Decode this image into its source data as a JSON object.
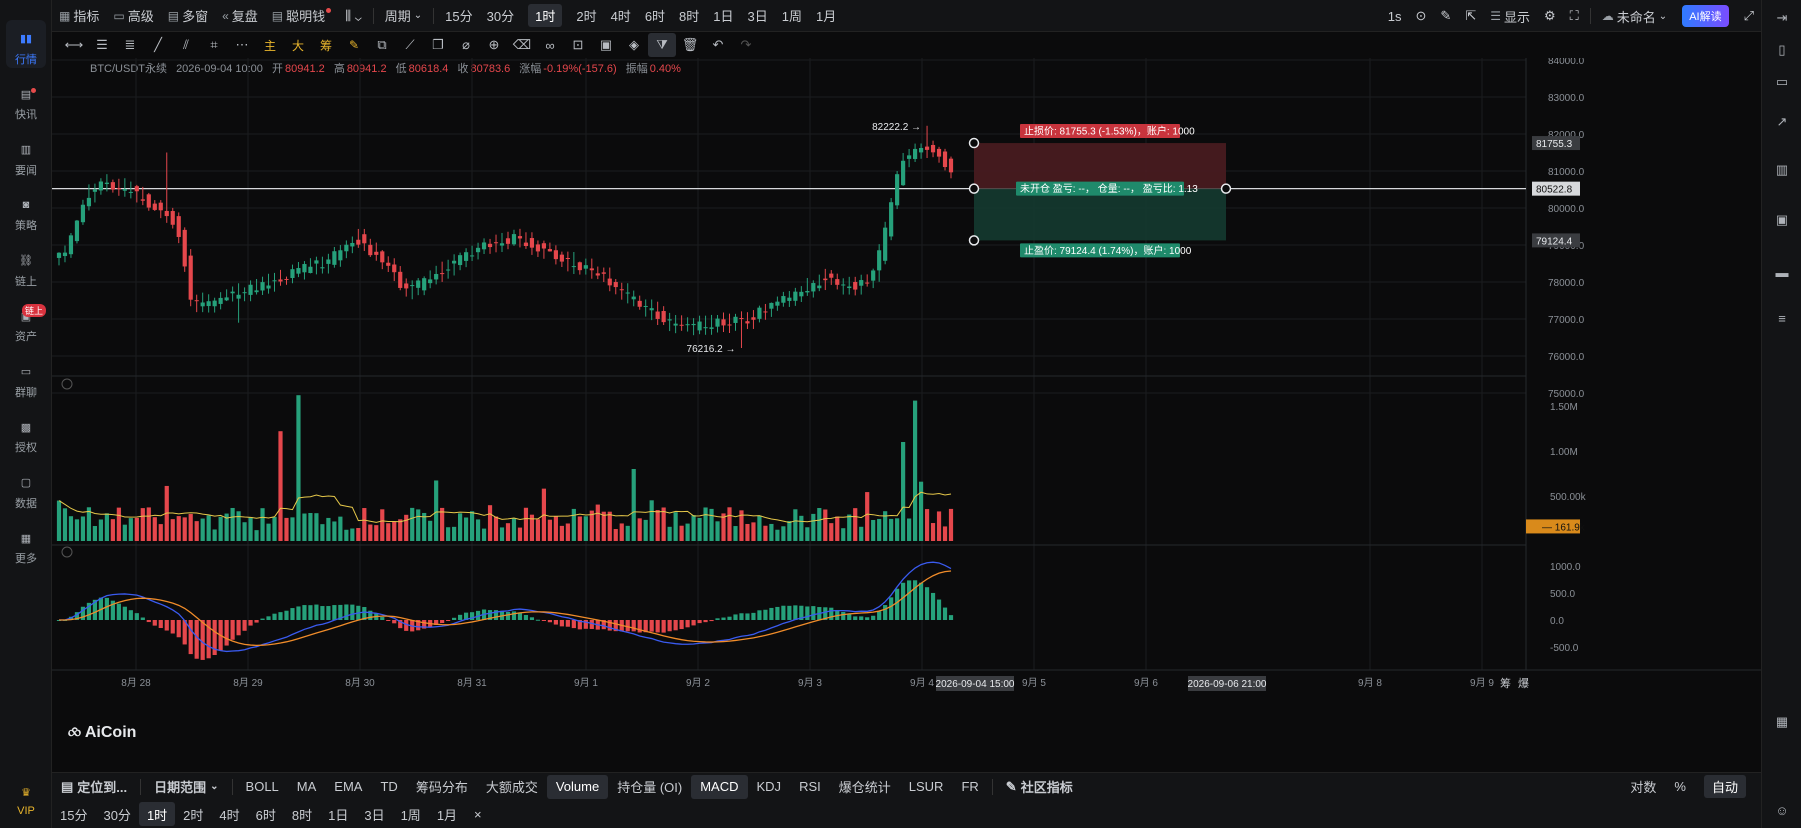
{
  "nav": {
    "items": [
      {
        "label": "行情",
        "icon": "chart-bars-icon"
      },
      {
        "label": "快讯",
        "icon": "news-icon"
      },
      {
        "label": "要闻",
        "icon": "document-icon"
      },
      {
        "label": "策略",
        "icon": "robot-icon"
      },
      {
        "label": "链上",
        "icon": "chain-icon"
      },
      {
        "label": "资产",
        "icon": "wallet-icon",
        "badge": "链上"
      },
      {
        "label": "群聊",
        "icon": "chat-icon"
      },
      {
        "label": "授权",
        "icon": "key-icon"
      },
      {
        "label": "数据",
        "icon": "monitor-icon"
      },
      {
        "label": "更多",
        "icon": "grid-icon"
      }
    ],
    "vip": "VIP"
  },
  "topbar": {
    "indicators": "指标",
    "advanced": "高级",
    "multiwindow": "多窗",
    "review": "复盘",
    "smartmoney": "聪明钱",
    "period": "周期",
    "timeframes": [
      "15分",
      "30分",
      "1时",
      "2时",
      "4时",
      "6时",
      "8时",
      "1日",
      "3日",
      "1周",
      "1月"
    ],
    "active_tf": "1时",
    "right": {
      "interval": "1s",
      "display": "显示",
      "layout_name": "未命名",
      "ai": "AI解读"
    }
  },
  "info": {
    "symbol": "BTC/USDT永续",
    "datetime": "2026-09-04 10:00",
    "open_k": "开",
    "open": "80941.2",
    "high_k": "高",
    "high": "80941.2",
    "low_k": "低",
    "low": "80618.4",
    "close_k": "收",
    "close": "80783.6",
    "chg_k": "涨幅",
    "chg": "-0.19%(-157.6)",
    "amp_k": "振幅",
    "amp": "0.40%"
  },
  "price_axis": [
    "84000.0",
    "83000.0",
    "82000.0",
    "81000.0",
    "80000.0",
    "79000.0",
    "78000.0",
    "77000.0",
    "76000.0",
    "75000.0"
  ],
  "price_markers": {
    "stop": "81755.3",
    "current": "80522.8",
    "profit": "79124.4"
  },
  "high_label": "82222.2",
  "low_label": "76216.2",
  "trade": {
    "stop": "止损价: 81755.3 (-1.53%)，账户: 1000",
    "open": "未开仓  盈亏: --，  仓量: --，  盈亏比: 1.13",
    "profit": "止盈价: 79124.4 (1.74%)，账户: 1000"
  },
  "vol_axis": [
    "1.50M",
    "1.00M",
    "500.00k"
  ],
  "vol_marker": "161.9k",
  "macd_axis": [
    "1000.0",
    "500.0",
    "0.0",
    "-500.0"
  ],
  "x_labels": [
    "8月 28",
    "8月 29",
    "8月 30",
    "8月 31",
    "9月 1",
    "9月 2",
    "9月 3",
    "9月 4",
    "9月 5",
    "9月 6",
    "9月 8",
    "9月 9"
  ],
  "x_markers": [
    "2026-09-04 15:00",
    "2026-09-06 21:00"
  ],
  "corner": [
    "筹",
    "爆"
  ],
  "logo": "AiCoin",
  "bottom1": {
    "locate": "定位到...",
    "daterange": "日期范围",
    "indicators": [
      "BOLL",
      "MA",
      "EMA",
      "TD",
      "筹码分布",
      "大额成交",
      "Volume",
      "持仓量 (OI)",
      "MACD",
      "KDJ",
      "RSI",
      "爆仓统计",
      "LSUR",
      "FR"
    ],
    "active": [
      "Volume",
      "MACD"
    ],
    "community": "社区指标",
    "log": "对数",
    "pct": "%",
    "auto": "自动"
  },
  "bottom2": {
    "timeframes": [
      "15分",
      "30分",
      "1时",
      "2时",
      "4时",
      "6时",
      "8时",
      "1日",
      "3日",
      "1周",
      "1月"
    ],
    "active": "1时",
    "close": "×"
  },
  "colors": {
    "up": "#26a17b",
    "down": "#e5474c",
    "accent": "#1e6cf2",
    "ma": "#e6c84a",
    "dif": "#3a5bf0",
    "dea": "#f08c2a"
  }
}
